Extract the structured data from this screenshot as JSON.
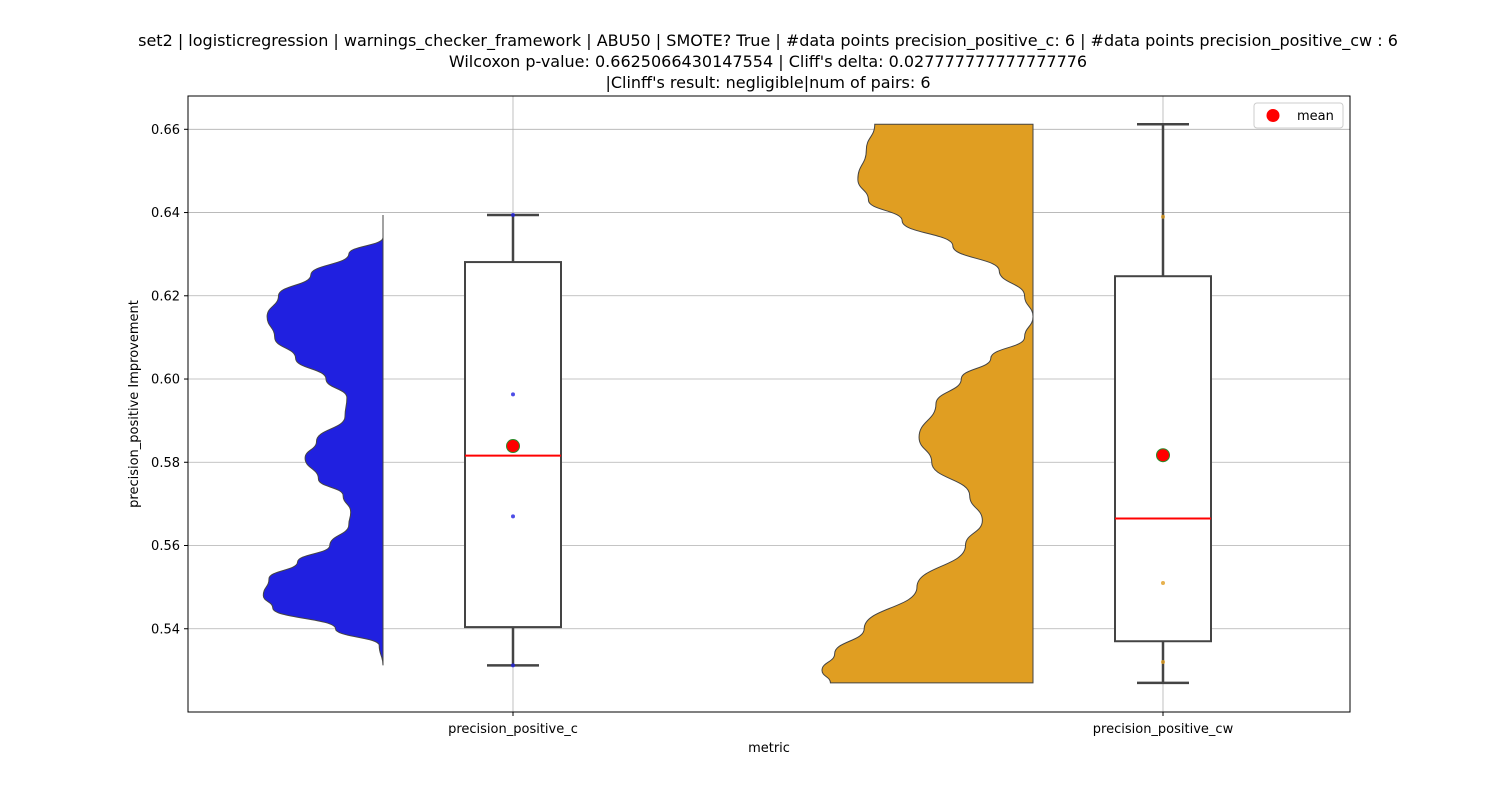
{
  "chart_data": {
    "type": "violin-box",
    "title_lines": [
      "set2 | logisticregression | warnings_checker_framework | ABU50 | SMOTE? True | #data points precision_positive_c: 6 | #data points precision_positive_cw : 6",
      "Wilcoxon p-value: 0.6625066430147554 | Cliff's delta: 0.027777777777777776",
      "|Clinff's result: negligible|num of pairs: 6"
    ],
    "xlabel": "metric",
    "ylabel": "precision_positive Improvement",
    "categories": [
      "precision_positive_c",
      "precision_positive_cw"
    ],
    "ylim": [
      0.52,
      0.668
    ],
    "yticks": [
      0.54,
      0.56,
      0.58,
      0.6,
      0.62,
      0.64,
      0.66
    ],
    "ytick_labels": [
      "0.54",
      "0.56",
      "0.58",
      "0.60",
      "0.62",
      "0.64",
      "0.66"
    ],
    "grid": true,
    "legend": {
      "position": "top-right",
      "entries": [
        {
          "label": "mean",
          "color": "#ff0000",
          "marker": "circle"
        }
      ]
    },
    "series": [
      {
        "name": "precision_positive_c",
        "color": "#2020e0",
        "violin_range": [
          0.5312,
          0.6394
        ],
        "violin_profile": [
          [
            0.5312,
            0.0
          ],
          [
            0.536,
            0.02
          ],
          [
            0.54,
            0.25
          ],
          [
            0.545,
            0.58
          ],
          [
            0.548,
            0.63
          ],
          [
            0.552,
            0.6
          ],
          [
            0.556,
            0.45
          ],
          [
            0.56,
            0.28
          ],
          [
            0.565,
            0.18
          ],
          [
            0.568,
            0.17
          ],
          [
            0.572,
            0.21
          ],
          [
            0.576,
            0.34
          ],
          [
            0.581,
            0.41
          ],
          [
            0.585,
            0.35
          ],
          [
            0.591,
            0.2
          ],
          [
            0.5955,
            0.19
          ],
          [
            0.6,
            0.3
          ],
          [
            0.605,
            0.46
          ],
          [
            0.61,
            0.57
          ],
          [
            0.615,
            0.61
          ],
          [
            0.62,
            0.55
          ],
          [
            0.625,
            0.38
          ],
          [
            0.63,
            0.18
          ],
          [
            0.634,
            0.0
          ],
          [
            0.6394,
            0.0
          ]
        ],
        "box": {
          "whisker_low": 0.5312,
          "q1": 0.5404,
          "median": 0.5816,
          "q3": 0.6281,
          "whisker_high": 0.6394
        },
        "mean": 0.5839,
        "points": [
          0.5312,
          0.567,
          0.5963,
          0.6394
        ]
      },
      {
        "name": "precision_positive_cw",
        "color": "#e09e22",
        "violin_range": [
          0.527,
          0.6612
        ],
        "violin_profile": [
          [
            0.527,
            0.96
          ],
          [
            0.53,
            1.0
          ],
          [
            0.534,
            0.94
          ],
          [
            0.54,
            0.8
          ],
          [
            0.55,
            0.55
          ],
          [
            0.56,
            0.32
          ],
          [
            0.566,
            0.24
          ],
          [
            0.572,
            0.3
          ],
          [
            0.58,
            0.48
          ],
          [
            0.586,
            0.54
          ],
          [
            0.594,
            0.46
          ],
          [
            0.6,
            0.34
          ],
          [
            0.605,
            0.2
          ],
          [
            0.61,
            0.04
          ],
          [
            0.615,
            0.0
          ],
          [
            0.62,
            0.04
          ],
          [
            0.626,
            0.16
          ],
          [
            0.632,
            0.38
          ],
          [
            0.638,
            0.62
          ],
          [
            0.643,
            0.78
          ],
          [
            0.648,
            0.83
          ],
          [
            0.655,
            0.79
          ],
          [
            0.6612,
            0.75
          ]
        ],
        "box": {
          "whisker_low": 0.527,
          "q1": 0.537,
          "median": 0.5665,
          "q3": 0.6247,
          "whisker_high": 0.6612
        },
        "mean": 0.5817,
        "points": [
          0.532,
          0.551,
          0.639
        ]
      }
    ]
  }
}
